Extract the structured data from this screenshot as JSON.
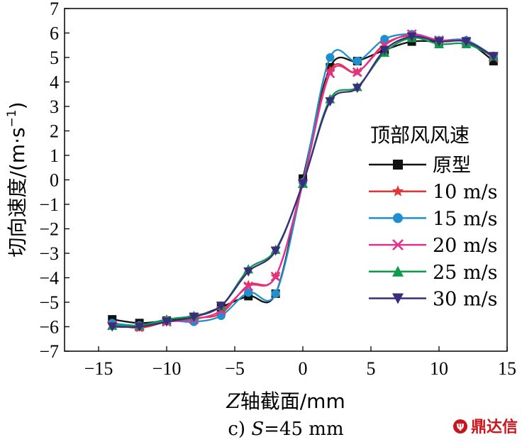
{
  "chart_data": {
    "type": "line",
    "xlabel_var": "Z",
    "xlabel_rest": "轴截面/mm",
    "ylabel": "切向速度/(m·s",
    "ylabel_sup": "−1",
    "ylabel_close": ")",
    "caption_prefix": "c) ",
    "caption_var": "S",
    "caption_rest": "=45 mm",
    "legend_title": "顶部风风速",
    "legend_position": "right",
    "xlim": [
      -17.5,
      15
    ],
    "ylim": [
      -7,
      7
    ],
    "xticks": [
      -15,
      -10,
      -5,
      0,
      5,
      10,
      15
    ],
    "yticks": [
      -7,
      -6,
      -5,
      -4,
      -3,
      -2,
      -1,
      0,
      1,
      2,
      3,
      4,
      5,
      6,
      7
    ],
    "xtick_labels": [
      "−15",
      "−10",
      "−5",
      "0",
      "5",
      "10",
      "15"
    ],
    "ytick_labels": [
      "−7",
      "−6",
      "−5",
      "−4",
      "−3",
      "−2",
      "−1",
      "0",
      "1",
      "2",
      "3",
      "4",
      "5",
      "6",
      "7"
    ],
    "series": [
      {
        "name": "原型",
        "color": "#111111",
        "marker": "square",
        "x": [
          -14,
          -12,
          -10,
          -8,
          -6,
          -4,
          -2,
          0,
          2,
          4,
          6,
          8,
          10,
          12,
          14
        ],
        "y": [
          -5.7,
          -5.85,
          -5.75,
          -5.6,
          -5.2,
          -4.75,
          -4.65,
          0.05,
          4.6,
          4.85,
          5.3,
          5.65,
          5.65,
          5.65,
          4.85
        ]
      },
      {
        "name": "10 m/s",
        "color": "#e63434",
        "marker": "star",
        "x": [
          -14,
          -12,
          -10,
          -8,
          -6,
          -4,
          -2,
          0,
          2,
          4,
          6,
          8,
          10,
          12,
          14
        ],
        "y": [
          -5.9,
          -6.05,
          -5.8,
          -5.65,
          -5.45,
          -4.3,
          -3.95,
          -0.1,
          4.45,
          4.4,
          5.55,
          5.9,
          5.7,
          5.7,
          5.05
        ]
      },
      {
        "name": "15 m/s",
        "color": "#1f8fce",
        "marker": "circle",
        "x": [
          -14,
          -12,
          -10,
          -8,
          -6,
          -4,
          -2,
          0,
          2,
          4,
          6,
          8,
          10,
          12,
          14
        ],
        "y": [
          -5.85,
          -5.95,
          -5.75,
          -5.8,
          -5.55,
          -4.6,
          -4.65,
          -0.1,
          5.0,
          4.85,
          5.75,
          5.95,
          5.7,
          5.7,
          5.05
        ]
      },
      {
        "name": "20 m/s",
        "color": "#e0338f",
        "marker": "x",
        "x": [
          -14,
          -12,
          -10,
          -8,
          -6,
          -4,
          -2,
          0,
          2,
          4,
          6,
          8,
          10,
          12,
          14
        ],
        "y": [
          -5.95,
          -6.0,
          -5.8,
          -5.7,
          -5.35,
          -4.35,
          -3.95,
          -0.15,
          4.35,
          4.4,
          5.5,
          5.95,
          5.7,
          5.65,
          5.0
        ]
      },
      {
        "name": "25 m/s",
        "color": "#109a4c",
        "marker": "triangle-up",
        "x": [
          -14,
          -12,
          -10,
          -8,
          -6,
          -4,
          -2,
          0,
          2,
          4,
          6,
          8,
          10,
          12,
          14
        ],
        "y": [
          -5.95,
          -5.95,
          -5.7,
          -5.55,
          -5.15,
          -3.65,
          -2.85,
          -0.15,
          3.3,
          3.8,
          5.2,
          5.8,
          5.55,
          5.55,
          5.05
        ]
      },
      {
        "name": "30 m/s",
        "color": "#3b2d7c",
        "marker": "triangle-down",
        "x": [
          -14,
          -12,
          -10,
          -8,
          -6,
          -4,
          -2,
          0,
          2,
          4,
          6,
          8,
          10,
          12,
          14
        ],
        "y": [
          -6.0,
          -6.0,
          -5.8,
          -5.6,
          -5.15,
          -3.75,
          -2.9,
          -0.15,
          3.2,
          3.75,
          5.3,
          5.85,
          5.65,
          5.65,
          5.05
        ]
      }
    ]
  },
  "watermark": {
    "text": "鼎达信",
    "color": "#c8161d"
  }
}
